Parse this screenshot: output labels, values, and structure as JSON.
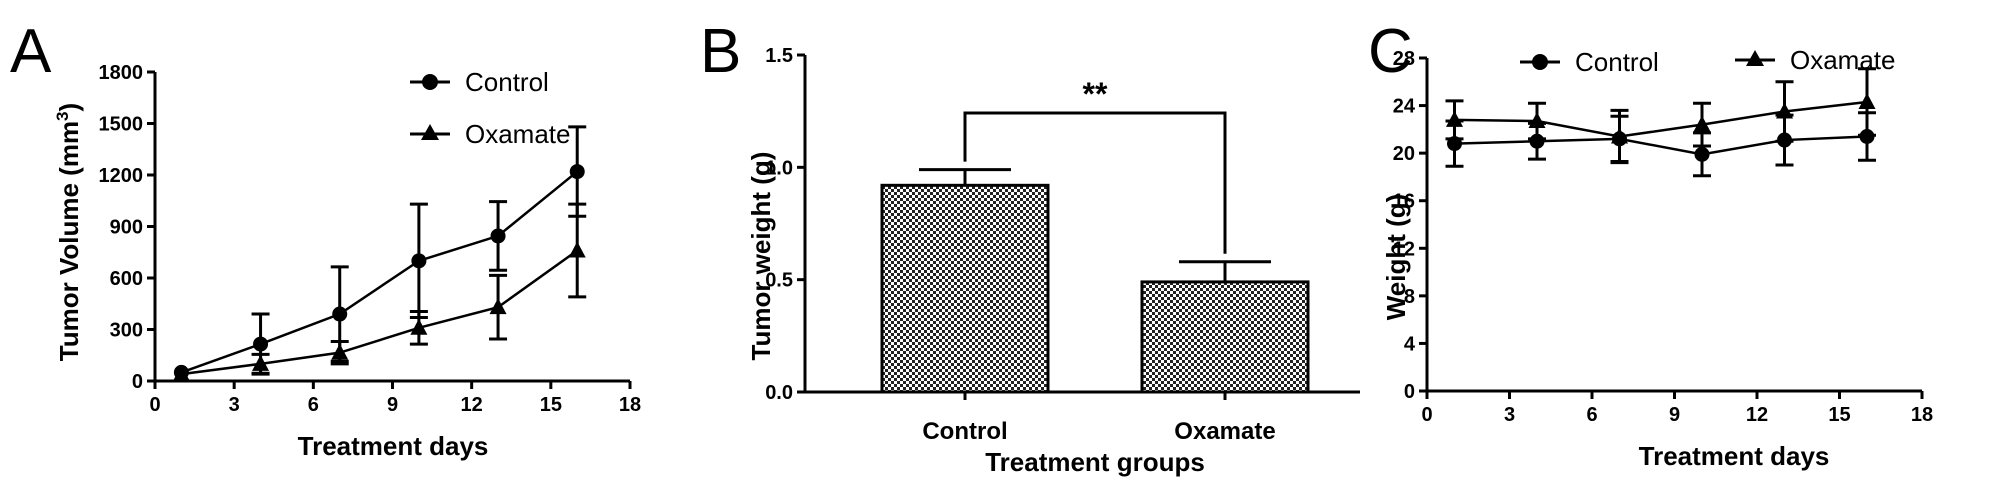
{
  "chart_data": [
    {
      "panel": "A",
      "type": "line",
      "xlabel": "Treatment days",
      "ylabel": "Tumor Volume (mm3)",
      "xlim": [
        0,
        18
      ],
      "ylim": [
        0,
        1800
      ],
      "xticks": [
        0,
        3,
        6,
        9,
        12,
        15,
        18
      ],
      "yticks": [
        0,
        300,
        600,
        900,
        1200,
        1500,
        1800
      ],
      "legend": "top-right",
      "series": [
        {
          "name": "Control",
          "marker": "circle",
          "x": [
            1,
            4,
            7,
            10,
            13,
            16
          ],
          "y": [
            50,
            215,
            390,
            700,
            845,
            1220
          ],
          "err": [
            0,
            175,
            275,
            330,
            200,
            260
          ]
        },
        {
          "name": "Oxamate",
          "marker": "triangle",
          "x": [
            1,
            4,
            7,
            10,
            13,
            16
          ],
          "y": [
            40,
            100,
            165,
            310,
            430,
            760
          ],
          "err": [
            0,
            55,
            65,
            95,
            185,
            270
          ]
        }
      ]
    },
    {
      "panel": "B",
      "type": "bar",
      "xlabel": "Treatment groups",
      "ylabel": "Tumor weight (g)",
      "ylim": [
        0,
        1.5
      ],
      "yticks": [
        "0.0",
        "0.5",
        "1.0",
        "1.5"
      ],
      "categories": [
        "Control",
        "Oxamate"
      ],
      "values": [
        0.92,
        0.49
      ],
      "err": [
        0.07,
        0.09
      ],
      "significance": "**"
    },
    {
      "panel": "C",
      "type": "line",
      "xlabel": "Treatment days",
      "ylabel": "Weight (g)",
      "xlim": [
        0,
        18
      ],
      "ylim": [
        0,
        28
      ],
      "xticks": [
        0,
        3,
        6,
        9,
        12,
        15,
        18
      ],
      "yticks": [
        0,
        4,
        8,
        12,
        16,
        20,
        24,
        28
      ],
      "legend": "top",
      "series": [
        {
          "name": "Control",
          "marker": "circle",
          "x": [
            1,
            4,
            7,
            10,
            13,
            16
          ],
          "y": [
            20.8,
            21.0,
            21.2,
            19.9,
            21.1,
            21.4
          ],
          "err": [
            1.9,
            1.5,
            1.9,
            1.8,
            2.1,
            2.0
          ]
        },
        {
          "name": "Oxamate",
          "marker": "triangle",
          "x": [
            1,
            4,
            7,
            10,
            13,
            16
          ],
          "y": [
            22.8,
            22.7,
            21.4,
            22.4,
            23.5,
            24.3
          ],
          "err": [
            1.6,
            1.5,
            2.2,
            1.8,
            2.5,
            2.8
          ]
        }
      ]
    }
  ]
}
